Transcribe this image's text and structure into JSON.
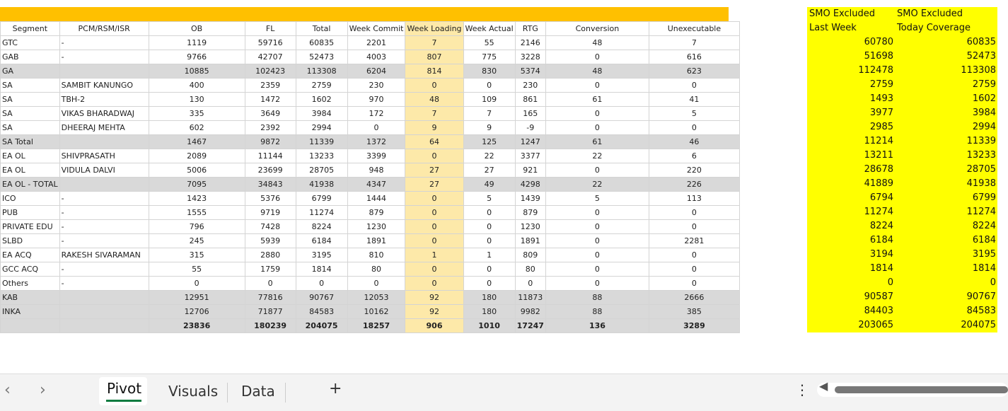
{
  "table": {
    "headers": [
      "Segment",
      "PCM/RSM/ISR",
      "OB",
      "FL",
      "Total",
      "Week Commit",
      "Week Loading",
      "Week Actual",
      "RTG",
      "Conversion",
      "Unexecutable"
    ],
    "rows": [
      [
        "GTC",
        "-",
        1119,
        59716,
        60835,
        2201,
        7,
        55,
        2146,
        48,
        7
      ],
      [
        "GAB",
        "-",
        9766,
        42707,
        52473,
        4003,
        807,
        775,
        3228,
        0,
        616
      ],
      [
        "GA",
        null,
        10885,
        102423,
        113308,
        6204,
        814,
        830,
        5374,
        48,
        623
      ],
      [
        "SA",
        "SAMBIT KANUNGO",
        400,
        2359,
        2759,
        230,
        0,
        0,
        230,
        0,
        0
      ],
      [
        "SA",
        "TBH-2",
        130,
        1472,
        1602,
        970,
        48,
        109,
        861,
        61,
        41
      ],
      [
        "SA",
        "VIKAS BHARADWAJ",
        335,
        3649,
        3984,
        172,
        7,
        7,
        165,
        0,
        5
      ],
      [
        "SA",
        "DHEERAJ MEHTA",
        602,
        2392,
        2994,
        0,
        9,
        9,
        -9,
        0,
        0
      ],
      [
        "SA Total",
        null,
        1467,
        9872,
        11339,
        1372,
        64,
        125,
        1247,
        61,
        46
      ],
      [
        "EA OL",
        "SHIVPRASATH",
        2089,
        11144,
        13233,
        3399,
        0,
        22,
        3377,
        22,
        6
      ],
      [
        "EA OL",
        "VIDULA DALVI",
        5006,
        23699,
        28705,
        948,
        27,
        27,
        921,
        0,
        220
      ],
      [
        "EA OL - TOTAL",
        null,
        7095,
        34843,
        41938,
        4347,
        27,
        49,
        4298,
        22,
        226
      ],
      [
        "ICO",
        "-",
        1423,
        5376,
        6799,
        1444,
        0,
        5,
        1439,
        5,
        113
      ],
      [
        "PUB",
        "-",
        1555,
        9719,
        11274,
        879,
        0,
        0,
        879,
        0,
        0
      ],
      [
        "PRIVATE EDU",
        "-",
        796,
        7428,
        8224,
        1230,
        0,
        0,
        1230,
        0,
        0
      ],
      [
        "SLBD",
        "-",
        245,
        5939,
        6184,
        1891,
        0,
        0,
        1891,
        0,
        2281
      ],
      [
        "EA ACQ",
        "RAKESH SIVARAMAN",
        315,
        2880,
        3195,
        810,
        1,
        1,
        809,
        0,
        0
      ],
      [
        "GCC ACQ",
        "-",
        55,
        1759,
        1814,
        80,
        0,
        0,
        80,
        0,
        0
      ],
      [
        "Others",
        "-",
        0,
        0,
        0,
        0,
        0,
        0,
        0,
        0,
        0
      ],
      [
        "KAB",
        null,
        12951,
        77816,
        90767,
        12053,
        92,
        180,
        11873,
        88,
        2666
      ],
      [
        "INKA",
        null,
        12706,
        71877,
        84583,
        10162,
        92,
        180,
        9982,
        88,
        385
      ],
      [
        null,
        null,
        23836,
        180239,
        204075,
        18257,
        906,
        1010,
        17247,
        136,
        3289
      ]
    ]
  },
  "side": {
    "headers": [
      [
        "SMO Excluded",
        "Last Week"
      ],
      [
        "SMO Excluded",
        "Today Coverage"
      ]
    ],
    "rows": [
      [
        60780,
        60835
      ],
      [
        51698,
        52473
      ],
      [
        112478,
        113308
      ],
      [
        2759,
        2759
      ],
      [
        1493,
        1602
      ],
      [
        3977,
        3984
      ],
      [
        2985,
        2994
      ],
      [
        11214,
        11339
      ],
      [
        13211,
        13233
      ],
      [
        28678,
        28705
      ],
      [
        41889,
        41938
      ],
      [
        6794,
        6799
      ],
      [
        11274,
        11274
      ],
      [
        8224,
        8224
      ],
      [
        6184,
        6184
      ],
      [
        3194,
        3195
      ],
      [
        1814,
        1814
      ],
      [
        0,
        0
      ],
      [
        90587,
        90767
      ],
      [
        84403,
        84583
      ],
      [
        203065,
        204075
      ]
    ]
  },
  "tabs": [
    "Pivot",
    "Visuals",
    "Data"
  ]
}
